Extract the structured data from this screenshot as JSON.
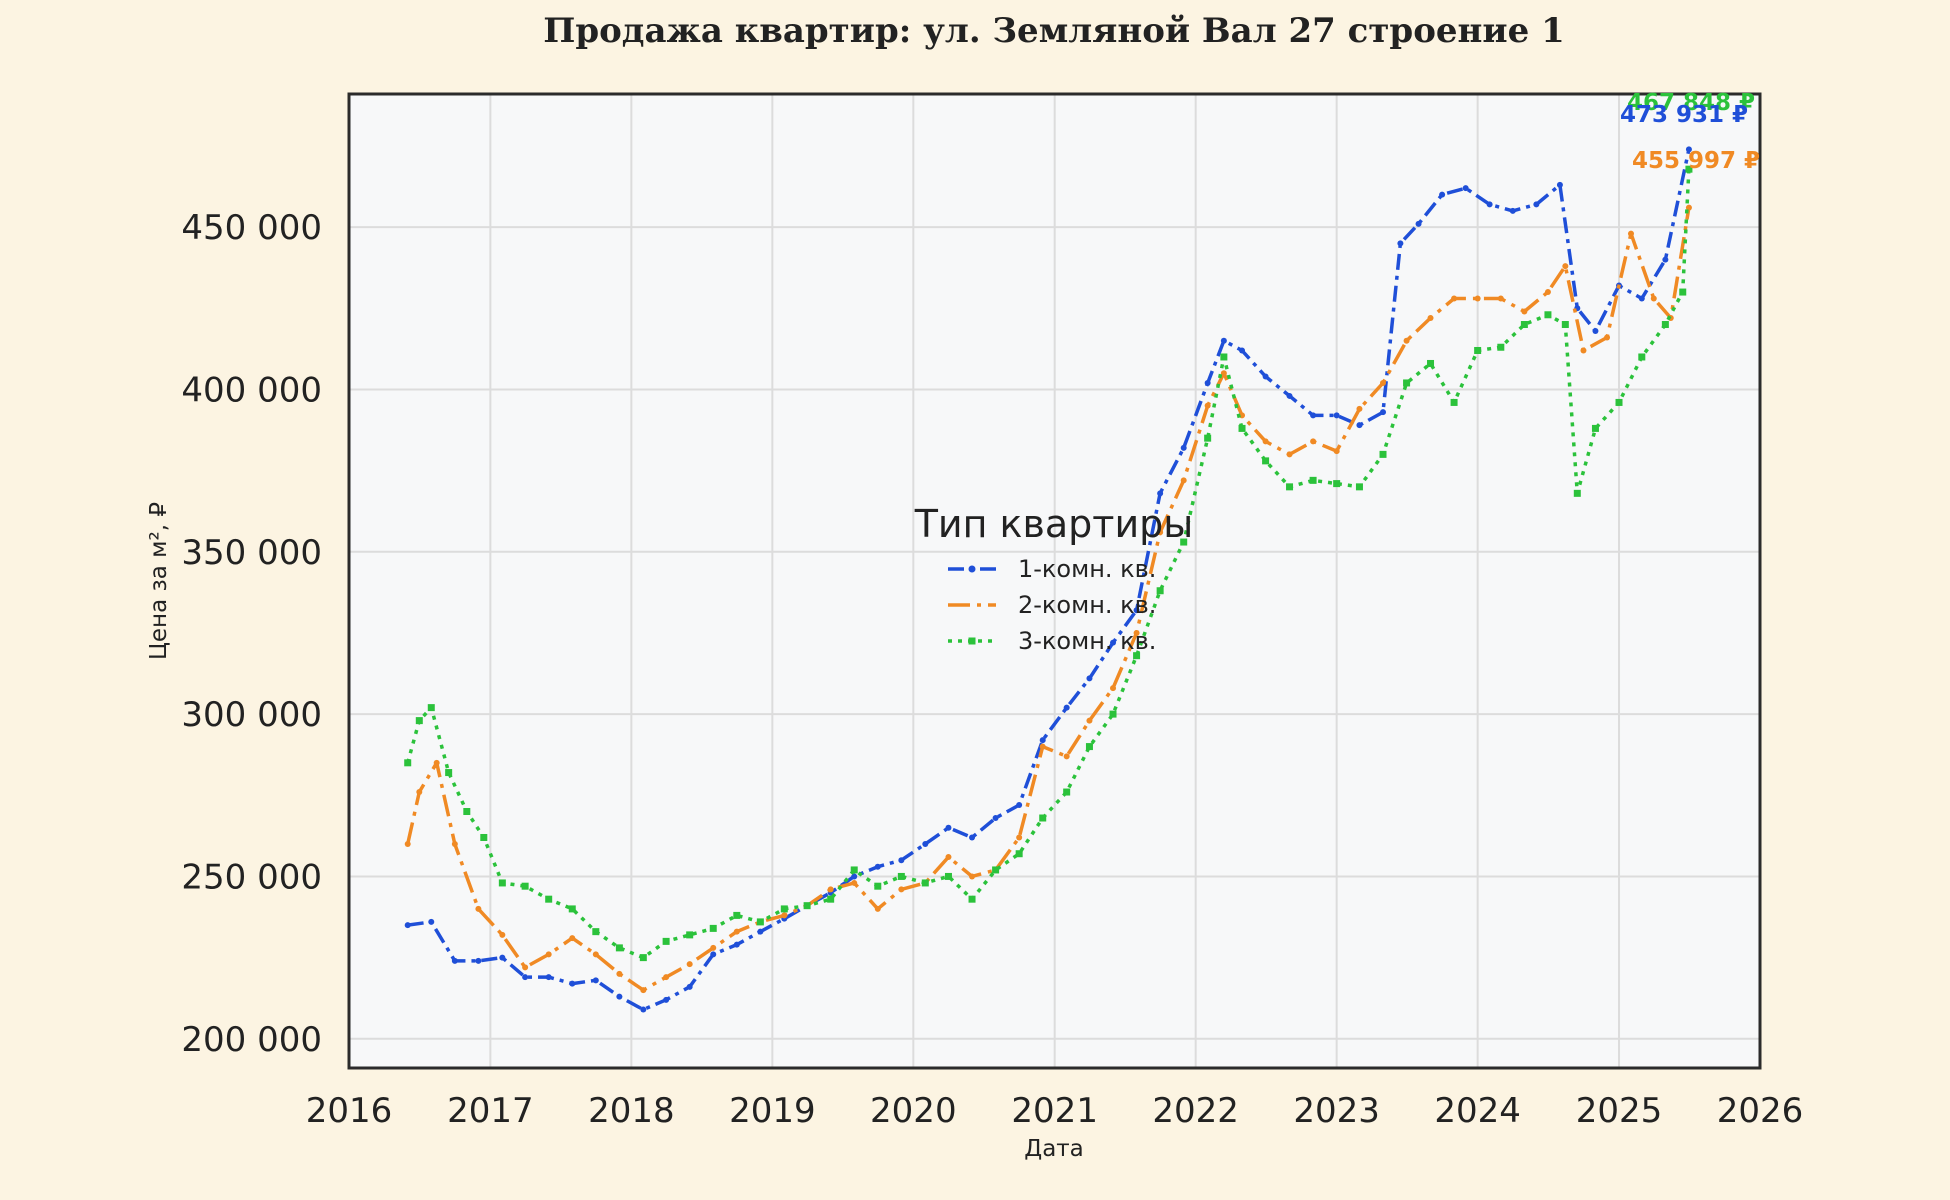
{
  "chart_data": {
    "type": "line",
    "title": "Продажа квартир: ул. Земляной Вал 27 строение 1",
    "xlabel": "Дата",
    "ylabel": "Цена за м², ₽",
    "xlim": [
      "2016-01-01",
      "2026-01-01"
    ],
    "ylim": [
      191000,
      491000
    ],
    "x_ticks": [
      "2016",
      "2017",
      "2018",
      "2019",
      "2020",
      "2021",
      "2022",
      "2023",
      "2024",
      "2025",
      "2026"
    ],
    "y_ticks": [
      200000,
      250000,
      300000,
      350000,
      400000,
      450000
    ],
    "y_tick_labels": [
      "200 000",
      "250 000",
      "300 000",
      "350 000",
      "400 000",
      "450 000"
    ],
    "grid": true,
    "legend": {
      "title": "Тип квартиры",
      "placement": "center"
    },
    "end_labels": [
      {
        "series": "3-комн. кв.",
        "text": "467 848 ₽"
      },
      {
        "series": "1-комн. кв.",
        "text": "473 931 ₽"
      },
      {
        "series": "2-комн. кв.",
        "text": "455 997 ₽"
      }
    ],
    "series": [
      {
        "name": "1-комн. кв.",
        "color": "#1f4fd8",
        "style": "dashdot-marker",
        "points": [
          [
            "2016-06-01",
            235000
          ],
          [
            "2016-08-01",
            236000
          ],
          [
            "2016-10-01",
            224000
          ],
          [
            "2016-12-01",
            224000
          ],
          [
            "2017-02-01",
            225000
          ],
          [
            "2017-04-01",
            219000
          ],
          [
            "2017-06-01",
            219000
          ],
          [
            "2017-08-01",
            217000
          ],
          [
            "2017-10-01",
            218000
          ],
          [
            "2017-12-01",
            213000
          ],
          [
            "2018-02-01",
            209000
          ],
          [
            "2018-04-01",
            212000
          ],
          [
            "2018-06-01",
            216000
          ],
          [
            "2018-08-01",
            226000
          ],
          [
            "2018-10-01",
            229000
          ],
          [
            "2018-12-01",
            233000
          ],
          [
            "2019-02-01",
            237000
          ],
          [
            "2019-04-01",
            241000
          ],
          [
            "2019-06-01",
            245000
          ],
          [
            "2019-08-01",
            250000
          ],
          [
            "2019-10-01",
            253000
          ],
          [
            "2019-12-01",
            255000
          ],
          [
            "2020-02-01",
            260000
          ],
          [
            "2020-04-01",
            265000
          ],
          [
            "2020-06-01",
            262000
          ],
          [
            "2020-08-01",
            268000
          ],
          [
            "2020-10-01",
            272000
          ],
          [
            "2020-12-01",
            292000
          ],
          [
            "2021-02-01",
            302000
          ],
          [
            "2021-04-01",
            311000
          ],
          [
            "2021-06-01",
            322000
          ],
          [
            "2021-08-01",
            332000
          ],
          [
            "2021-10-01",
            368000
          ],
          [
            "2021-12-01",
            382000
          ],
          [
            "2022-02-01",
            402000
          ],
          [
            "2022-03-15",
            415000
          ],
          [
            "2022-05-01",
            412000
          ],
          [
            "2022-07-01",
            404000
          ],
          [
            "2022-09-01",
            398000
          ],
          [
            "2022-11-01",
            392000
          ],
          [
            "2023-01-01",
            392000
          ],
          [
            "2023-03-01",
            389000
          ],
          [
            "2023-05-01",
            393000
          ],
          [
            "2023-06-15",
            445000
          ],
          [
            "2023-08-01",
            451000
          ],
          [
            "2023-10-01",
            460000
          ],
          [
            "2023-12-01",
            462000
          ],
          [
            "2024-02-01",
            457000
          ],
          [
            "2024-04-01",
            455000
          ],
          [
            "2024-06-01",
            457000
          ],
          [
            "2024-08-01",
            463000
          ],
          [
            "2024-09-15",
            425000
          ],
          [
            "2024-11-01",
            418000
          ],
          [
            "2025-01-01",
            432000
          ],
          [
            "2025-03-01",
            428000
          ],
          [
            "2025-05-01",
            440000
          ],
          [
            "2025-07-01",
            473931
          ]
        ]
      },
      {
        "name": "2-комн. кв.",
        "color": "#f08a24",
        "style": "dashdot",
        "points": [
          [
            "2016-06-01",
            260000
          ],
          [
            "2016-07-01",
            276000
          ],
          [
            "2016-08-15",
            285000
          ],
          [
            "2016-10-01",
            260000
          ],
          [
            "2016-12-01",
            240000
          ],
          [
            "2017-02-01",
            232000
          ],
          [
            "2017-04-01",
            222000
          ],
          [
            "2017-06-01",
            226000
          ],
          [
            "2017-08-01",
            231000
          ],
          [
            "2017-10-01",
            226000
          ],
          [
            "2017-12-01",
            220000
          ],
          [
            "2018-02-01",
            215000
          ],
          [
            "2018-04-01",
            219000
          ],
          [
            "2018-06-01",
            223000
          ],
          [
            "2018-08-01",
            228000
          ],
          [
            "2018-10-01",
            233000
          ],
          [
            "2018-12-01",
            236000
          ],
          [
            "2019-02-01",
            238000
          ],
          [
            "2019-04-01",
            241000
          ],
          [
            "2019-06-01",
            246000
          ],
          [
            "2019-08-01",
            248000
          ],
          [
            "2019-10-01",
            240000
          ],
          [
            "2019-12-01",
            246000
          ],
          [
            "2020-02-01",
            248000
          ],
          [
            "2020-04-01",
            256000
          ],
          [
            "2020-06-01",
            250000
          ],
          [
            "2020-08-01",
            252000
          ],
          [
            "2020-10-01",
            262000
          ],
          [
            "2020-12-01",
            290000
          ],
          [
            "2021-02-01",
            287000
          ],
          [
            "2021-04-01",
            298000
          ],
          [
            "2021-06-01",
            308000
          ],
          [
            "2021-08-01",
            325000
          ],
          [
            "2021-10-01",
            356000
          ],
          [
            "2021-12-01",
            372000
          ],
          [
            "2022-02-01",
            395000
          ],
          [
            "2022-03-15",
            405000
          ],
          [
            "2022-05-01",
            392000
          ],
          [
            "2022-07-01",
            384000
          ],
          [
            "2022-09-01",
            380000
          ],
          [
            "2022-11-01",
            384000
          ],
          [
            "2023-01-01",
            381000
          ],
          [
            "2023-03-01",
            394000
          ],
          [
            "2023-05-01",
            402000
          ],
          [
            "2023-07-01",
            415000
          ],
          [
            "2023-09-01",
            422000
          ],
          [
            "2023-11-01",
            428000
          ],
          [
            "2024-01-01",
            428000
          ],
          [
            "2024-03-01",
            428000
          ],
          [
            "2024-05-01",
            424000
          ],
          [
            "2024-07-01",
            430000
          ],
          [
            "2024-08-15",
            438000
          ],
          [
            "2024-10-01",
            412000
          ],
          [
            "2024-12-01",
            416000
          ],
          [
            "2025-02-01",
            448000
          ],
          [
            "2025-04-01",
            428000
          ],
          [
            "2025-05-15",
            422000
          ],
          [
            "2025-07-01",
            455997
          ]
        ]
      },
      {
        "name": "3-комн. кв.",
        "color": "#2bc23b",
        "style": "dotted-marker",
        "points": [
          [
            "2016-06-01",
            285000
          ],
          [
            "2016-07-01",
            298000
          ],
          [
            "2016-08-01",
            302000
          ],
          [
            "2016-09-15",
            282000
          ],
          [
            "2016-11-01",
            270000
          ],
          [
            "2016-12-15",
            262000
          ],
          [
            "2017-02-01",
            248000
          ],
          [
            "2017-04-01",
            247000
          ],
          [
            "2017-06-01",
            243000
          ],
          [
            "2017-08-01",
            240000
          ],
          [
            "2017-10-01",
            233000
          ],
          [
            "2017-12-01",
            228000
          ],
          [
            "2018-02-01",
            225000
          ],
          [
            "2018-04-01",
            230000
          ],
          [
            "2018-06-01",
            232000
          ],
          [
            "2018-08-01",
            234000
          ],
          [
            "2018-10-01",
            238000
          ],
          [
            "2018-12-01",
            236000
          ],
          [
            "2019-02-01",
            240000
          ],
          [
            "2019-04-01",
            241000
          ],
          [
            "2019-06-01",
            243000
          ],
          [
            "2019-08-01",
            252000
          ],
          [
            "2019-10-01",
            247000
          ],
          [
            "2019-12-01",
            250000
          ],
          [
            "2020-02-01",
            248000
          ],
          [
            "2020-04-01",
            250000
          ],
          [
            "2020-06-01",
            243000
          ],
          [
            "2020-08-01",
            252000
          ],
          [
            "2020-10-01",
            257000
          ],
          [
            "2020-12-01",
            268000
          ],
          [
            "2021-02-01",
            276000
          ],
          [
            "2021-04-01",
            290000
          ],
          [
            "2021-06-01",
            300000
          ],
          [
            "2021-08-01",
            318000
          ],
          [
            "2021-10-01",
            338000
          ],
          [
            "2021-12-01",
            353000
          ],
          [
            "2022-02-01",
            385000
          ],
          [
            "2022-03-15",
            410000
          ],
          [
            "2022-05-01",
            388000
          ],
          [
            "2022-07-01",
            378000
          ],
          [
            "2022-09-01",
            370000
          ],
          [
            "2022-11-01",
            372000
          ],
          [
            "2023-01-01",
            371000
          ],
          [
            "2023-03-01",
            370000
          ],
          [
            "2023-05-01",
            380000
          ],
          [
            "2023-07-01",
            402000
          ],
          [
            "2023-09-01",
            408000
          ],
          [
            "2023-11-01",
            396000
          ],
          [
            "2024-01-01",
            412000
          ],
          [
            "2024-03-01",
            413000
          ],
          [
            "2024-05-01",
            420000
          ],
          [
            "2024-07-01",
            423000
          ],
          [
            "2024-08-15",
            420000
          ],
          [
            "2024-09-15",
            368000
          ],
          [
            "2024-11-01",
            388000
          ],
          [
            "2025-01-01",
            396000
          ],
          [
            "2025-03-01",
            410000
          ],
          [
            "2025-05-01",
            420000
          ],
          [
            "2025-06-15",
            430000
          ],
          [
            "2025-07-01",
            467848
          ]
        ]
      }
    ]
  }
}
